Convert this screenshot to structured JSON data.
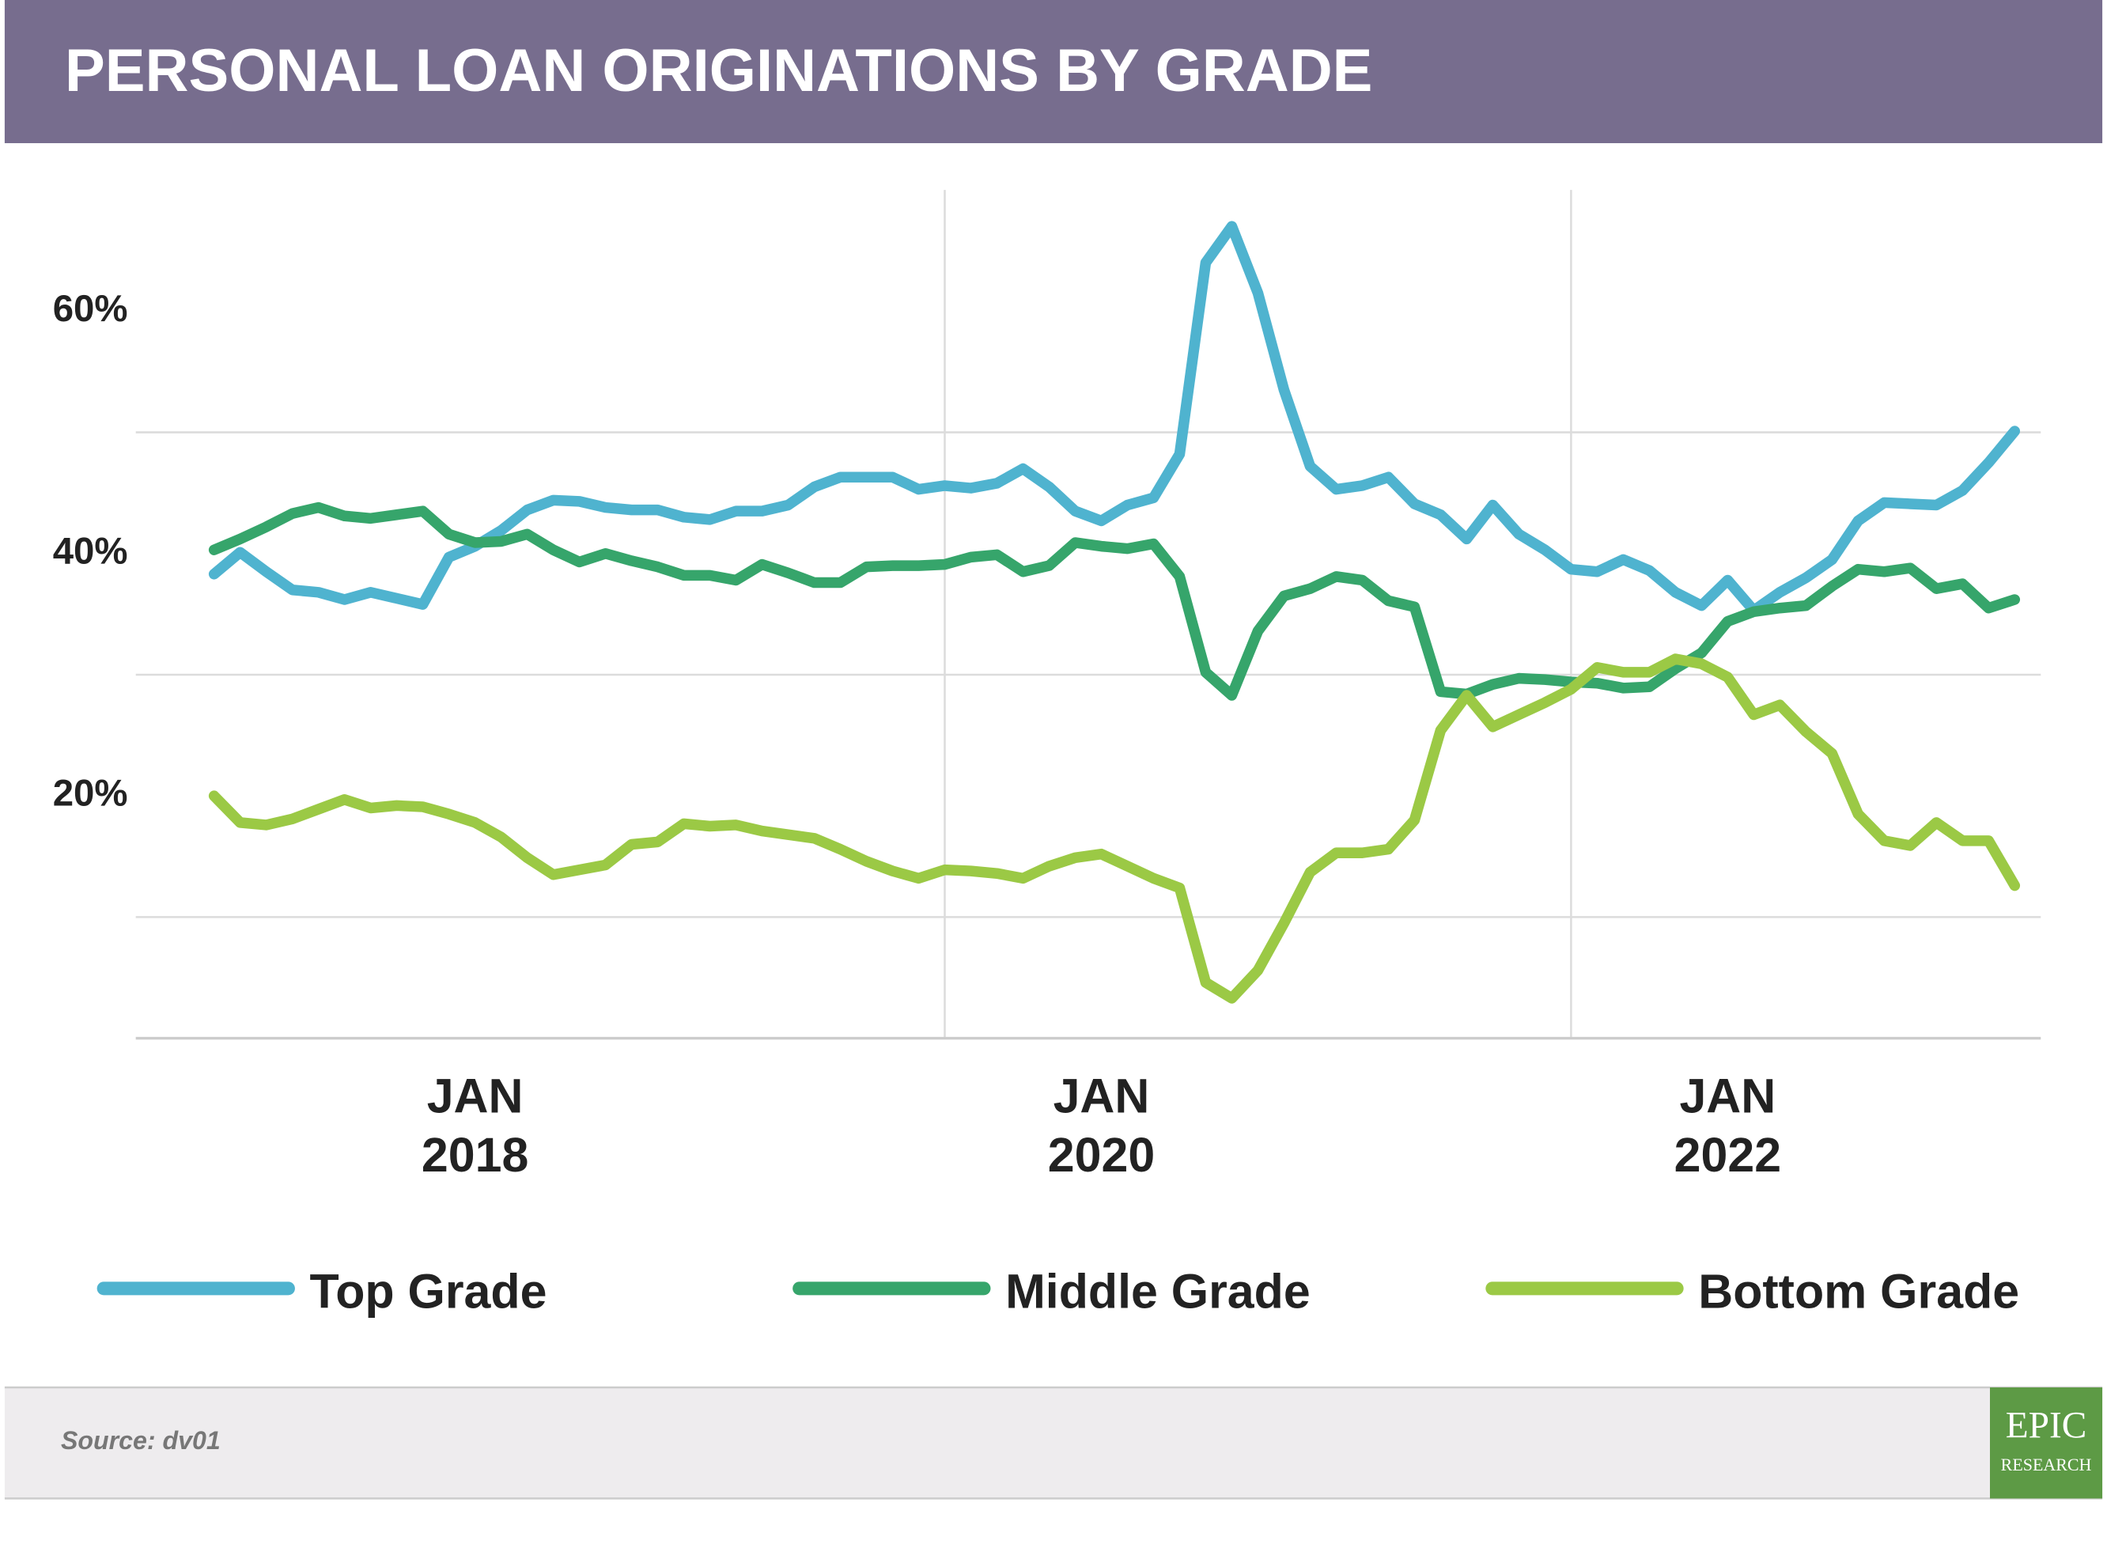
{
  "chart_data": {
    "type": "line",
    "title": "PERSONAL LOAN ORIGINATIONS BY GRADE",
    "source": "Source: dv01",
    "logo": {
      "top": "EPIC",
      "bottom": "RESEARCH"
    },
    "x": [
      "2017-03",
      "2017-04",
      "2017-05",
      "2017-06",
      "2017-07",
      "2017-08",
      "2017-09",
      "2017-10",
      "2017-11",
      "2017-12",
      "2018-01",
      "2018-02",
      "2018-03",
      "2018-04",
      "2018-05",
      "2018-06",
      "2018-07",
      "2018-08",
      "2018-09",
      "2018-10",
      "2018-11",
      "2018-12",
      "2019-01",
      "2019-02",
      "2019-03",
      "2019-04",
      "2019-05",
      "2019-06",
      "2019-07",
      "2019-08",
      "2019-09",
      "2019-10",
      "2019-11",
      "2019-12",
      "2020-01",
      "2020-02",
      "2020-03",
      "2020-04",
      "2020-05",
      "2020-06",
      "2020-07",
      "2020-08",
      "2020-09",
      "2020-10",
      "2020-11",
      "2020-12",
      "2021-01",
      "2021-02",
      "2021-03",
      "2021-04",
      "2021-05",
      "2021-06",
      "2021-07",
      "2021-08",
      "2021-09",
      "2021-10",
      "2021-11",
      "2021-12",
      "2022-01",
      "2022-02",
      "2022-03",
      "2022-04",
      "2022-05",
      "2022-06",
      "2022-07",
      "2022-08",
      "2022-09",
      "2022-10",
      "2022-11",
      "2022-12"
    ],
    "series": [
      {
        "name": "Top Grade",
        "color": "#4fb3cf",
        "values": [
          38.3,
          40.1,
          38.5,
          37,
          36.8,
          36.2,
          36.8,
          36.3,
          35.8,
          39.7,
          40.6,
          41.9,
          43.6,
          44.4,
          44.3,
          43.8,
          43.6,
          43.6,
          43,
          42.8,
          43.5,
          43.5,
          44,
          45.5,
          46.3,
          46.3,
          46.3,
          45.3,
          45.6,
          45.4,
          45.8,
          47,
          45.5,
          43.5,
          42.7,
          44,
          44.6,
          48.2,
          64,
          67,
          61.5,
          53.5,
          47.2,
          45.3,
          45.6,
          46.3,
          44.1,
          43.2,
          41.2,
          44,
          41.6,
          40.3,
          38.7,
          38.5,
          39.5,
          38.6,
          36.8,
          35.7,
          37.8,
          35.3,
          36.8,
          38,
          39.5,
          42.7,
          44.2,
          44.1,
          44,
          45.2,
          47.5,
          50.1
        ]
      },
      {
        "name": "Middle Grade",
        "color": "#36a56b",
        "values": [
          40.3,
          41.2,
          42.2,
          43.3,
          43.8,
          43.1,
          42.9,
          43.2,
          43.5,
          41.6,
          40.9,
          41,
          41.6,
          40.3,
          39.3,
          40,
          39.4,
          38.9,
          38.2,
          38.2,
          37.8,
          39.1,
          38.4,
          37.6,
          37.6,
          38.9,
          39,
          39,
          39.1,
          39.7,
          39.9,
          38.5,
          39,
          40.9,
          40.6,
          40.4,
          40.8,
          38.1,
          30.2,
          28.3,
          33.6,
          36.5,
          37.1,
          38.1,
          37.8,
          36.1,
          35.6,
          28.6,
          28.4,
          29.2,
          29.7,
          29.6,
          29.4,
          29.3,
          28.9,
          29,
          30.5,
          31.8,
          34.4,
          35.2,
          35.5,
          35.7,
          37.3,
          38.7,
          38.5,
          38.8,
          37.1,
          37.5,
          35.5,
          36.2
        ]
      },
      {
        "name": "Bottom Grade",
        "color": "#9bc945",
        "values": [
          20,
          17.8,
          17.6,
          18.1,
          18.9,
          19.7,
          19,
          19.2,
          19.1,
          18.5,
          17.8,
          16.6,
          14.9,
          13.5,
          13.9,
          14.3,
          16,
          16.2,
          17.7,
          17.5,
          17.6,
          17.1,
          16.8,
          16.5,
          15.6,
          14.6,
          13.8,
          13.2,
          13.9,
          13.8,
          13.6,
          13.2,
          14.2,
          14.9,
          15.2,
          14.2,
          13.2,
          12.4,
          4.6,
          3.3,
          5.6,
          9.5,
          13.7,
          15.3,
          15.3,
          15.6,
          18,
          25.4,
          28.3,
          25.7,
          26.7,
          27.7,
          28.8,
          30.6,
          30.2,
          30.2,
          31.3,
          30.9,
          29.8,
          26.7,
          27.5,
          25.3,
          23.5,
          18.5,
          16.3,
          15.9,
          17.8,
          16.3,
          16.3,
          12.6
        ]
      }
    ],
    "xlim": [
      "2016-12",
      "2023-01"
    ],
    "xticks": [
      {
        "value": "2018-01",
        "label": "JAN 2018"
      },
      {
        "value": "2020-01",
        "label": "JAN 2020"
      },
      {
        "value": "2022-01",
        "label": "JAN 2022"
      }
    ],
    "xgrid": [
      "2019-07",
      "2021-07"
    ],
    "ylim": [
      0,
      70
    ],
    "yticks": [
      {
        "value": 20,
        "label": "20%"
      },
      {
        "value": 40,
        "label": "40%"
      },
      {
        "value": 60,
        "label": "60%"
      }
    ],
    "ygrid": [
      10,
      30,
      50
    ],
    "legend": "bottom"
  }
}
